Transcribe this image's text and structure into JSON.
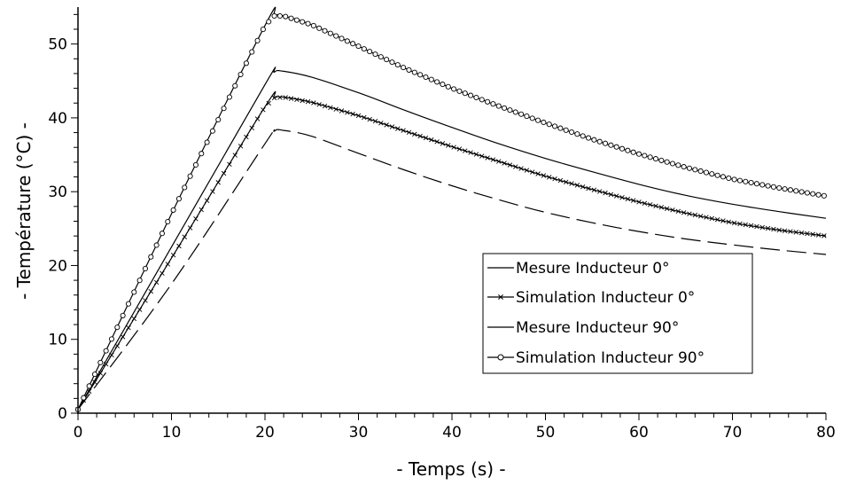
{
  "chart_data": {
    "type": "line",
    "xlabel": "- Temps (s) -",
    "ylabel": "- Température (°C) -",
    "xlim": [
      0,
      80
    ],
    "ylim": [
      0,
      55
    ],
    "xticks": [
      "0",
      "10",
      "20",
      "30",
      "40",
      "50",
      "60",
      "70",
      "80"
    ],
    "yticks": [
      "0",
      "10",
      "20",
      "30",
      "40",
      "50"
    ],
    "grid": false,
    "legend_position": "center-right",
    "series": [
      {
        "name": "Mesure Inducteur 0°",
        "style": "dashed",
        "color": "#000000",
        "x": [
          0,
          10,
          20,
          21,
          22,
          25,
          30,
          35,
          40,
          45,
          50,
          55,
          60,
          65,
          70,
          75,
          80
        ],
        "y": [
          0.5,
          17.5,
          36.5,
          38.2,
          38.3,
          37.5,
          35.2,
          32.9,
          30.8,
          28.9,
          27.2,
          25.8,
          24.6,
          23.6,
          22.8,
          22.1,
          21.5
        ]
      },
      {
        "name": "Simulation Inducteur 0°",
        "style": "solid-x-markers",
        "color": "#000000",
        "x": [
          0,
          10,
          20,
          21,
          22,
          25,
          30,
          35,
          40,
          45,
          50,
          55,
          60,
          65,
          70,
          75,
          80
        ],
        "y": [
          0.5,
          21.0,
          41.5,
          42.7,
          42.8,
          42.1,
          40.3,
          38.2,
          36.1,
          34.1,
          32.1,
          30.3,
          28.6,
          27.1,
          25.8,
          24.8,
          24.0
        ]
      },
      {
        "name": "Mesure Inducteur 90°",
        "style": "solid",
        "color": "#000000",
        "x": [
          0,
          10,
          20,
          21,
          22,
          25,
          30,
          35,
          40,
          45,
          50,
          55,
          60,
          65,
          70,
          75,
          80
        ],
        "y": [
          0.5,
          22.5,
          44.5,
          46.2,
          46.3,
          45.5,
          43.4,
          41.0,
          38.7,
          36.5,
          34.5,
          32.7,
          31.0,
          29.5,
          28.3,
          27.3,
          26.4
        ]
      },
      {
        "name": "Simulation Inducteur 90°",
        "style": "solid-o-markers",
        "color": "#000000",
        "x": [
          0,
          10,
          20,
          21,
          22,
          25,
          30,
          35,
          40,
          45,
          50,
          55,
          60,
          65,
          70,
          75,
          80
        ],
        "y": [
          0.5,
          27.0,
          52.5,
          53.8,
          53.8,
          52.6,
          49.7,
          46.7,
          44.0,
          41.6,
          39.3,
          37.1,
          35.1,
          33.3,
          31.7,
          30.5,
          29.4
        ]
      }
    ],
    "legend": [
      "Mesure Inducteur 0°",
      "Simulation Inducteur 0°",
      "Mesure Inducteur 90°",
      "Simulation Inducteur 90°"
    ]
  }
}
